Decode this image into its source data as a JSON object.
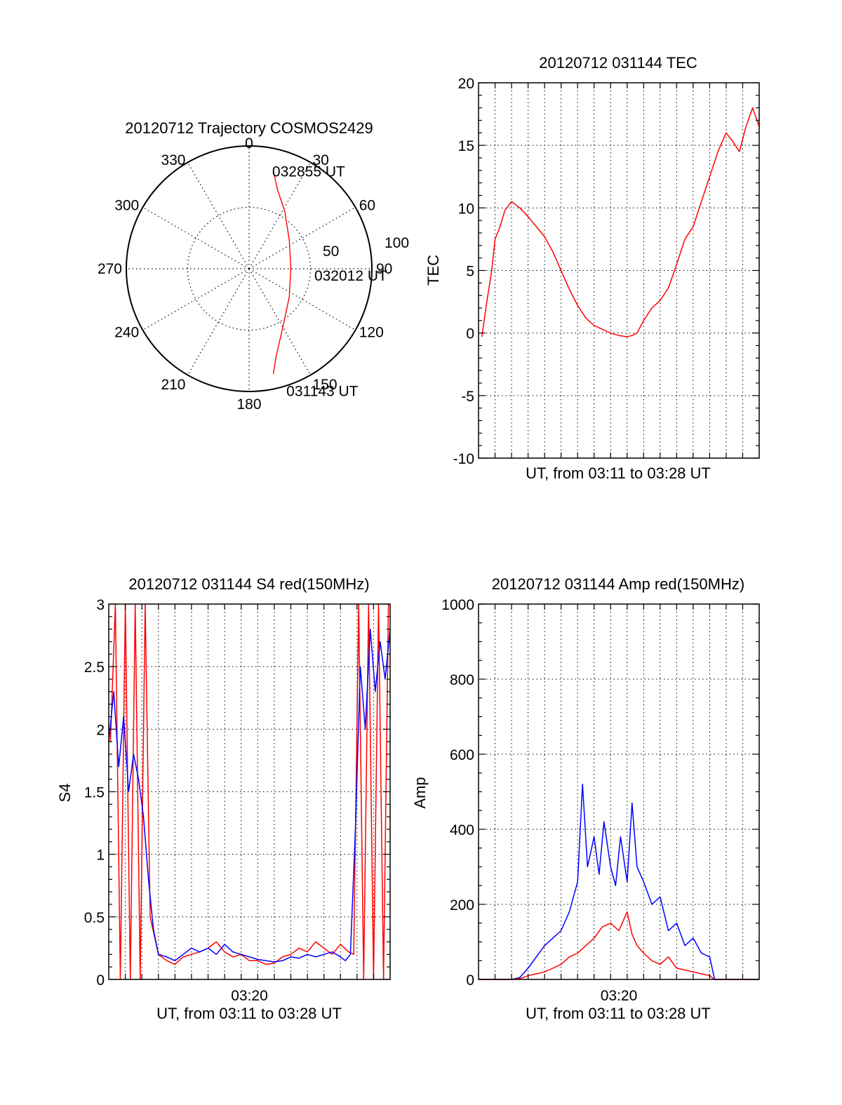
{
  "chart_data": [
    {
      "id": "polar",
      "type": "polar-trajectory",
      "title": "20120712 Trajectory COSMOS2429",
      "azimuth_labels": [
        "0",
        "30",
        "60",
        "90",
        "120",
        "150",
        "180",
        "210",
        "240",
        "270",
        "300",
        "330"
      ],
      "radial_labels": [
        "50",
        "100"
      ],
      "radial_max": 100,
      "series": [
        {
          "color": "#ff0000",
          "points": [
            {
              "az": 14,
              "r": 82
            },
            {
              "az": 20,
              "r": 68
            },
            {
              "az": 32,
              "r": 55
            },
            {
              "az": 55,
              "r": 40
            },
            {
              "az": 90,
              "r": 34
            },
            {
              "az": 125,
              "r": 40
            },
            {
              "az": 150,
              "r": 55
            },
            {
              "az": 163,
              "r": 75
            },
            {
              "az": 167,
              "r": 88
            }
          ]
        }
      ],
      "annotations": [
        {
          "text": "032855 UT",
          "az": 12,
          "r": 85
        },
        {
          "text": "032012 UT",
          "az": 92,
          "r": 52
        },
        {
          "text": "031143 UT",
          "az": 163,
          "r": 100
        }
      ]
    },
    {
      "id": "tec",
      "type": "line",
      "title": "20120712 031144 TEC",
      "xlabel": "UT, from 03:11 to 03:28 UT",
      "ylabel": "TEC",
      "xlim": [
        0,
        17
      ],
      "ylim": [
        -10,
        20
      ],
      "yticks": [
        "20",
        "15",
        "10",
        "5",
        "0",
        "-5",
        "-10"
      ],
      "xticks": [],
      "grid": true,
      "series": [
        {
          "color": "#ff0000",
          "x": [
            0.2,
            0.5,
            0.8,
            1.0,
            1.3,
            1.6,
            2.0,
            2.5,
            3.0,
            3.5,
            4.0,
            4.5,
            5.0,
            5.5,
            6.0,
            6.5,
            7.0,
            7.5,
            8.0,
            8.5,
            9.0,
            9.3,
            9.6,
            10.0,
            10.5,
            11.0,
            11.5,
            12.0,
            12.5,
            13.0,
            13.5,
            14.0,
            14.5,
            15.0,
            15.4,
            15.8,
            16.2,
            16.6,
            17.0
          ],
          "y": [
            -0.3,
            2.5,
            5.0,
            7.5,
            8.5,
            9.8,
            10.5,
            10.0,
            9.3,
            8.5,
            7.7,
            6.5,
            5.0,
            3.5,
            2.2,
            1.2,
            0.6,
            0.3,
            0.0,
            -0.2,
            -0.3,
            -0.2,
            0.0,
            1.0,
            2.0,
            2.6,
            3.6,
            5.5,
            7.5,
            8.5,
            10.5,
            12.5,
            14.5,
            16.0,
            15.3,
            14.5,
            16.5,
            18.0,
            16.5
          ]
        }
      ]
    },
    {
      "id": "s4",
      "type": "line",
      "title": "20120712 031144 S4 red(150MHz)",
      "xlabel": "UT, from 03:11 to 03:28 UT",
      "ylabel": "S4",
      "xlim": [
        0,
        17
      ],
      "ylim": [
        0,
        3
      ],
      "yticks": [
        "3",
        "2.5",
        "2",
        "1.5",
        "1",
        "0.5",
        "0"
      ],
      "xticks": [
        "03:20"
      ],
      "grid": true,
      "series": [
        {
          "color": "#ff0000",
          "x": [
            0.1,
            0.4,
            0.7,
            1.0,
            1.3,
            1.6,
            1.9,
            2.2,
            2.5,
            3.0,
            3.5,
            4.0,
            4.5,
            5.0,
            5.5,
            6.0,
            6.5,
            7.0,
            7.5,
            8.0,
            8.5,
            9.0,
            9.5,
            10.0,
            10.5,
            11.0,
            11.5,
            12.0,
            12.5,
            13.0,
            13.5,
            14.0,
            14.5,
            14.8,
            15.1,
            15.4,
            15.7,
            16.0,
            16.3,
            16.6,
            16.9
          ],
          "y": [
            1.9,
            3.0,
            0.0,
            3.0,
            0.0,
            3.0,
            0.0,
            3.0,
            0.5,
            0.2,
            0.15,
            0.12,
            0.18,
            0.2,
            0.22,
            0.25,
            0.3,
            0.22,
            0.18,
            0.2,
            0.15,
            0.15,
            0.12,
            0.13,
            0.18,
            0.2,
            0.25,
            0.22,
            0.3,
            0.25,
            0.2,
            0.28,
            0.22,
            0.2,
            3.0,
            0.0,
            3.0,
            0.0,
            3.0,
            0.0,
            3.0
          ]
        },
        {
          "color": "#0000ff",
          "x": [
            0.0,
            0.3,
            0.6,
            0.9,
            1.2,
            1.5,
            1.8,
            2.1,
            2.4,
            2.7,
            3.0,
            3.5,
            4.0,
            4.5,
            5.0,
            5.5,
            6.0,
            6.5,
            7.0,
            7.5,
            8.0,
            8.5,
            9.0,
            9.5,
            10.0,
            10.5,
            11.0,
            11.5,
            12.0,
            12.5,
            13.0,
            13.5,
            14.0,
            14.3,
            14.6,
            14.9,
            15.2,
            15.5,
            15.8,
            16.1,
            16.4,
            16.7,
            17.0
          ],
          "y": [
            1.9,
            2.3,
            1.7,
            2.1,
            1.5,
            1.8,
            1.6,
            1.3,
            0.8,
            0.4,
            0.2,
            0.18,
            0.15,
            0.2,
            0.25,
            0.22,
            0.25,
            0.2,
            0.28,
            0.22,
            0.2,
            0.18,
            0.16,
            0.15,
            0.14,
            0.15,
            0.18,
            0.17,
            0.2,
            0.18,
            0.2,
            0.22,
            0.18,
            0.15,
            0.2,
            1.2,
            2.5,
            2.0,
            2.8,
            2.3,
            2.7,
            2.4,
            2.8
          ]
        }
      ]
    },
    {
      "id": "amp",
      "type": "line",
      "title": "20120712 031144 Amp red(150MHz)",
      "xlabel": "UT, from 03:11 to 03:28 UT",
      "ylabel": "Amp",
      "xlim": [
        0,
        17
      ],
      "ylim": [
        0,
        1000
      ],
      "yticks": [
        "1000",
        "800",
        "600",
        "400",
        "200",
        "0"
      ],
      "xticks": [
        "03:20"
      ],
      "grid": true,
      "series": [
        {
          "color": "#0000ff",
          "x": [
            0,
            1,
            2,
            2.5,
            3.0,
            3.5,
            4.0,
            4.5,
            5.0,
            5.5,
            6.0,
            6.3,
            6.6,
            7.0,
            7.3,
            7.6,
            8.0,
            8.3,
            8.6,
            9.0,
            9.3,
            9.6,
            10.0,
            10.5,
            11.0,
            11.5,
            12.0,
            12.5,
            13.0,
            13.5,
            14.0,
            14.3,
            15,
            16,
            17
          ],
          "y": [
            0,
            0,
            0,
            5,
            30,
            60,
            90,
            110,
            130,
            180,
            260,
            520,
            300,
            380,
            280,
            420,
            300,
            250,
            380,
            260,
            470,
            300,
            260,
            200,
            220,
            130,
            150,
            90,
            110,
            70,
            60,
            0,
            0,
            0,
            0
          ]
        },
        {
          "color": "#ff0000",
          "x": [
            0,
            2,
            2.5,
            3.0,
            3.5,
            4.0,
            4.5,
            5.0,
            5.5,
            6.0,
            6.5,
            7.0,
            7.5,
            8.0,
            8.5,
            9.0,
            9.3,
            9.6,
            10.0,
            10.5,
            11.0,
            11.5,
            12.0,
            12.5,
            13.0,
            13.5,
            14.0,
            14.3,
            15,
            17
          ],
          "y": [
            0,
            0,
            2,
            10,
            15,
            20,
            30,
            40,
            60,
            70,
            90,
            110,
            140,
            150,
            130,
            180,
            120,
            90,
            70,
            50,
            40,
            60,
            30,
            25,
            20,
            15,
            10,
            0,
            0,
            0
          ]
        }
      ]
    }
  ]
}
